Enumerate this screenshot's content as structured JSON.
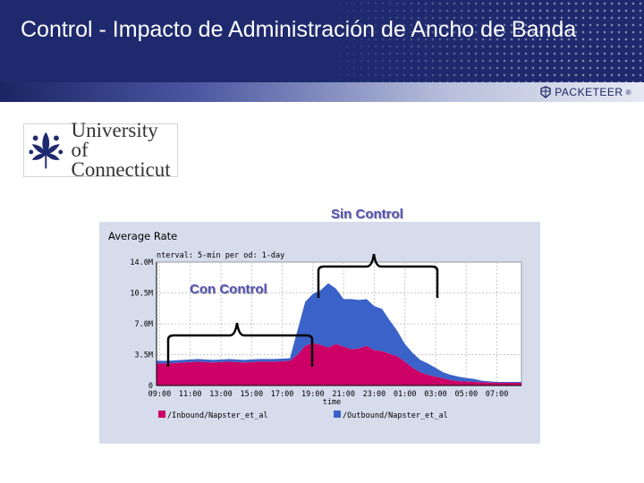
{
  "slide": {
    "title": "Control -  Impacto de Administración de Ancho de Banda"
  },
  "branding": {
    "vendor_logo": "PACKETEER",
    "university_name": "University of Connecticut",
    "university_line1": "University of",
    "university_line2": "Connecticut"
  },
  "annotations": {
    "sin_control": "Sin Control",
    "con_control": "Con Control"
  },
  "chart_data": {
    "type": "area",
    "stacked": true,
    "title": "Average Rate",
    "subtitle": "nterval: 5-min   per od: 1-day",
    "xlabel": "time",
    "ylabel": "",
    "x": [
      9,
      11,
      13,
      15,
      17,
      19,
      21,
      23,
      25,
      27,
      29,
      31
    ],
    "xtick_labels": [
      "09:00",
      "11:00",
      "13:00",
      "15:00",
      "17:00",
      "19:00",
      "21:00",
      "23:00",
      "01:00",
      "03:00",
      "05:00",
      "07:00"
    ],
    "ytick_labels": [
      "14.0M",
      "10.5M",
      "7.0M",
      "3.5M",
      "0"
    ],
    "ylim": [
      0,
      14.0
    ],
    "grid": true,
    "legend_position": "bottom",
    "series": [
      {
        "name": "/Inbound/Napster_et_al",
        "color": "#cc0066",
        "x": [
          8.8,
          9.5,
          10.5,
          11.5,
          12.5,
          13.5,
          14.5,
          15.5,
          16.5,
          17.5,
          18.0,
          18.5,
          19.0,
          19.5,
          20.0,
          20.5,
          21.0,
          21.5,
          22.0,
          22.5,
          23.0,
          23.5,
          24.0,
          24.5,
          25.0,
          25.5,
          26.0,
          26.5,
          27.0,
          27.5,
          28.0,
          28.5,
          29.0,
          29.5,
          30.0,
          31.0,
          32.0,
          32.6
        ],
        "values": [
          2.5,
          2.5,
          2.6,
          2.7,
          2.6,
          2.7,
          2.6,
          2.7,
          2.7,
          2.8,
          3.5,
          4.5,
          4.8,
          4.6,
          4.3,
          4.7,
          4.4,
          4.1,
          4.2,
          4.5,
          4.0,
          3.9,
          3.6,
          3.3,
          2.7,
          2.0,
          1.5,
          1.2,
          1.0,
          0.8,
          0.6,
          0.5,
          0.45,
          0.4,
          0.35,
          0.3,
          0.3,
          0.3
        ]
      },
      {
        "name": "/Outbound/Napster_et_al",
        "color": "#3a62c8",
        "x": [
          8.8,
          9.5,
          10.5,
          11.5,
          12.5,
          13.5,
          14.5,
          15.5,
          16.5,
          17.5,
          18.0,
          18.5,
          19.0,
          19.5,
          20.0,
          20.5,
          21.0,
          21.5,
          22.0,
          22.5,
          23.0,
          23.5,
          24.0,
          24.5,
          25.0,
          25.5,
          26.0,
          26.5,
          27.0,
          27.5,
          28.0,
          28.5,
          29.0,
          29.5,
          30.0,
          31.0,
          32.0,
          32.6
        ],
        "values": [
          0.3,
          0.3,
          0.3,
          0.3,
          0.3,
          0.3,
          0.3,
          0.3,
          0.3,
          0.3,
          2.8,
          5.0,
          5.6,
          6.2,
          7.3,
          6.3,
          5.4,
          5.7,
          5.5,
          5.3,
          5.0,
          4.8,
          3.8,
          2.9,
          2.0,
          1.7,
          1.4,
          1.3,
          1.0,
          0.7,
          0.6,
          0.5,
          0.4,
          0.35,
          0.2,
          0.1,
          0.1,
          0.1
        ]
      }
    ]
  }
}
